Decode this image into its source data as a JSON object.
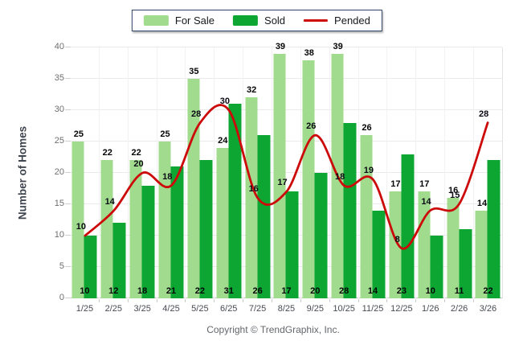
{
  "legend": {
    "for_sale_label": "For Sale",
    "sold_label": "Sold",
    "pended_label": "Pended"
  },
  "y_axis": {
    "title": "Number of Homes",
    "min": 0,
    "max": 40,
    "tick_step": 5,
    "tick_labels": [
      "0",
      "5",
      "10",
      "15",
      "20",
      "25",
      "30",
      "35",
      "40"
    ]
  },
  "x_axis": {
    "tick_labels": [
      "1/25",
      "2/25",
      "3/25",
      "4/25",
      "5/25",
      "6/25",
      "7/25",
      "8/25",
      "9/25",
      "10/25",
      "11/25",
      "12/25",
      "1/26",
      "2/26",
      "3/26"
    ]
  },
  "footer": {
    "copyright": "Copyright © TrendGraphix, Inc."
  },
  "colors": {
    "for_sale": "#a0db8e",
    "sold": "#0da632",
    "pended": "#cc0a0a",
    "grid": "#eaeaea",
    "baseline": "#c8c8c8",
    "tick_dash": "#cfcfcf",
    "legend_border": "#2f4568"
  },
  "chart_data": {
    "type": "bar",
    "title": "",
    "categories": [
      "1/25",
      "2/25",
      "3/25",
      "4/25",
      "5/25",
      "6/25",
      "7/25",
      "8/25",
      "9/25",
      "10/25",
      "11/25",
      "12/25",
      "1/26",
      "2/26",
      "3/26"
    ],
    "series": [
      {
        "name": "For Sale",
        "type": "bar",
        "color": "#a0db8e",
        "values": [
          25,
          22,
          22,
          25,
          35,
          24,
          32,
          39,
          38,
          39,
          26,
          17,
          17,
          16,
          14
        ]
      },
      {
        "name": "Sold",
        "type": "bar",
        "color": "#0da632",
        "values": [
          10,
          12,
          18,
          21,
          22,
          31,
          26,
          17,
          20,
          28,
          14,
          23,
          10,
          11,
          22
        ]
      },
      {
        "name": "Pended",
        "type": "line",
        "color": "#cc0a0a",
        "values": [
          10,
          14,
          20,
          18,
          28,
          30,
          16,
          17,
          26,
          18,
          19,
          8,
          14,
          15,
          28
        ]
      }
    ],
    "xlabel": "",
    "ylabel": "Number of Homes",
    "ylim": [
      0,
      40
    ],
    "grid": "horizontal",
    "legend_position": "top-center",
    "value_labels": "shown"
  }
}
